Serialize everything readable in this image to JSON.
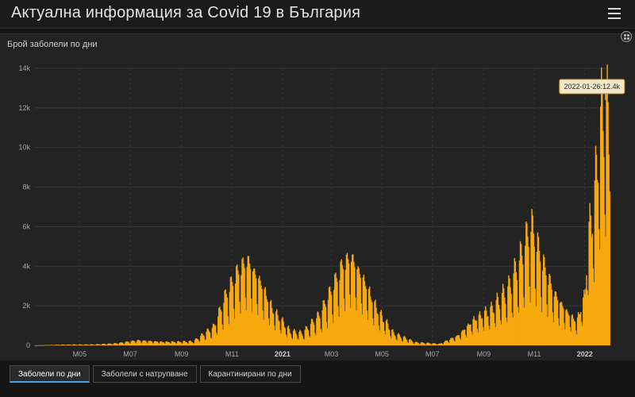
{
  "app": {
    "title": "Актуална информация за Covid 19 в България",
    "menu_icon": "hamburger-menu-icon"
  },
  "chart_panel": {
    "title": "Брой заболели по дни",
    "expand_icon": "expand-dots-icon"
  },
  "tabs": [
    {
      "label": "Заболели по дни",
      "active": true
    },
    {
      "label": "Заболели с натрупване",
      "active": false
    },
    {
      "label": "Карантинирани по дни",
      "active": false
    }
  ],
  "colors": {
    "bar": "#f7a90f",
    "background": "#232323",
    "grid": "#3a3a3a",
    "accent_tab": "#4aa0e6"
  },
  "chart_data": {
    "type": "bar",
    "title": "Брой заболели по дни",
    "ylim": [
      0,
      14000
    ],
    "y_ticks": [
      {
        "value": 0,
        "label": "0"
      },
      {
        "value": 2000,
        "label": "2k"
      },
      {
        "value": 4000,
        "label": "4k"
      },
      {
        "value": 6000,
        "label": "6k"
      },
      {
        "value": 8000,
        "label": "8k"
      },
      {
        "value": 10000,
        "label": "10k"
      },
      {
        "value": 12000,
        "label": "12k"
      },
      {
        "value": 14000,
        "label": "14k"
      }
    ],
    "x_range": [
      "2020-03-08",
      "2022-01-31"
    ],
    "x_ticks": [
      {
        "date": "2020-05-01",
        "label": "M05",
        "bold": false
      },
      {
        "date": "2020-07-01",
        "label": "M07",
        "bold": false
      },
      {
        "date": "2020-09-01",
        "label": "M09",
        "bold": false
      },
      {
        "date": "2020-11-01",
        "label": "M11",
        "bold": false
      },
      {
        "date": "2021-01-01",
        "label": "2021",
        "bold": true
      },
      {
        "date": "2021-03-01",
        "label": "M03",
        "bold": false
      },
      {
        "date": "2021-05-01",
        "label": "M05",
        "bold": false
      },
      {
        "date": "2021-07-01",
        "label": "M07",
        "bold": false
      },
      {
        "date": "2021-09-01",
        "label": "M09",
        "bold": false
      },
      {
        "date": "2021-11-01",
        "label": "M11",
        "bold": false
      },
      {
        "date": "2022-01-01",
        "label": "2022",
        "bold": true
      }
    ],
    "trend_points": [
      {
        "date": "2020-03-08",
        "value": 0
      },
      {
        "date": "2020-04-10",
        "value": 40
      },
      {
        "date": "2020-05-20",
        "value": 50
      },
      {
        "date": "2020-06-15",
        "value": 100
      },
      {
        "date": "2020-07-10",
        "value": 250
      },
      {
        "date": "2020-08-10",
        "value": 180
      },
      {
        "date": "2020-09-15",
        "value": 200
      },
      {
        "date": "2020-10-10",
        "value": 900
      },
      {
        "date": "2020-10-25",
        "value": 2500
      },
      {
        "date": "2020-11-10",
        "value": 3800
      },
      {
        "date": "2020-11-20",
        "value": 4200
      },
      {
        "date": "2020-12-05",
        "value": 3200
      },
      {
        "date": "2020-12-20",
        "value": 1800
      },
      {
        "date": "2021-01-10",
        "value": 700
      },
      {
        "date": "2021-01-25",
        "value": 600
      },
      {
        "date": "2021-02-15",
        "value": 1500
      },
      {
        "date": "2021-03-01",
        "value": 2700
      },
      {
        "date": "2021-03-15",
        "value": 4000
      },
      {
        "date": "2021-03-25",
        "value": 4400
      },
      {
        "date": "2021-04-10",
        "value": 3200
      },
      {
        "date": "2021-04-25",
        "value": 1800
      },
      {
        "date": "2021-05-15",
        "value": 600
      },
      {
        "date": "2021-06-10",
        "value": 150
      },
      {
        "date": "2021-07-10",
        "value": 80
      },
      {
        "date": "2021-08-01",
        "value": 500
      },
      {
        "date": "2021-08-20",
        "value": 1300
      },
      {
        "date": "2021-09-10",
        "value": 1800
      },
      {
        "date": "2021-10-01",
        "value": 2800
      },
      {
        "date": "2021-10-15",
        "value": 4200
      },
      {
        "date": "2021-10-28",
        "value": 5800
      },
      {
        "date": "2021-11-10",
        "value": 4200
      },
      {
        "date": "2021-11-25",
        "value": 2600
      },
      {
        "date": "2021-12-10",
        "value": 1700
      },
      {
        "date": "2021-12-22",
        "value": 1200
      },
      {
        "date": "2022-01-01",
        "value": 2500
      },
      {
        "date": "2022-01-05",
        "value": 5500
      },
      {
        "date": "2022-01-12",
        "value": 7000
      },
      {
        "date": "2022-01-18",
        "value": 10500
      },
      {
        "date": "2022-01-26",
        "value": 12400
      },
      {
        "date": "2022-01-31",
        "value": 9500
      }
    ],
    "tooltip": {
      "date": "2022-01-26",
      "value": 12400,
      "text": "2022-01-26:12.4k"
    }
  }
}
